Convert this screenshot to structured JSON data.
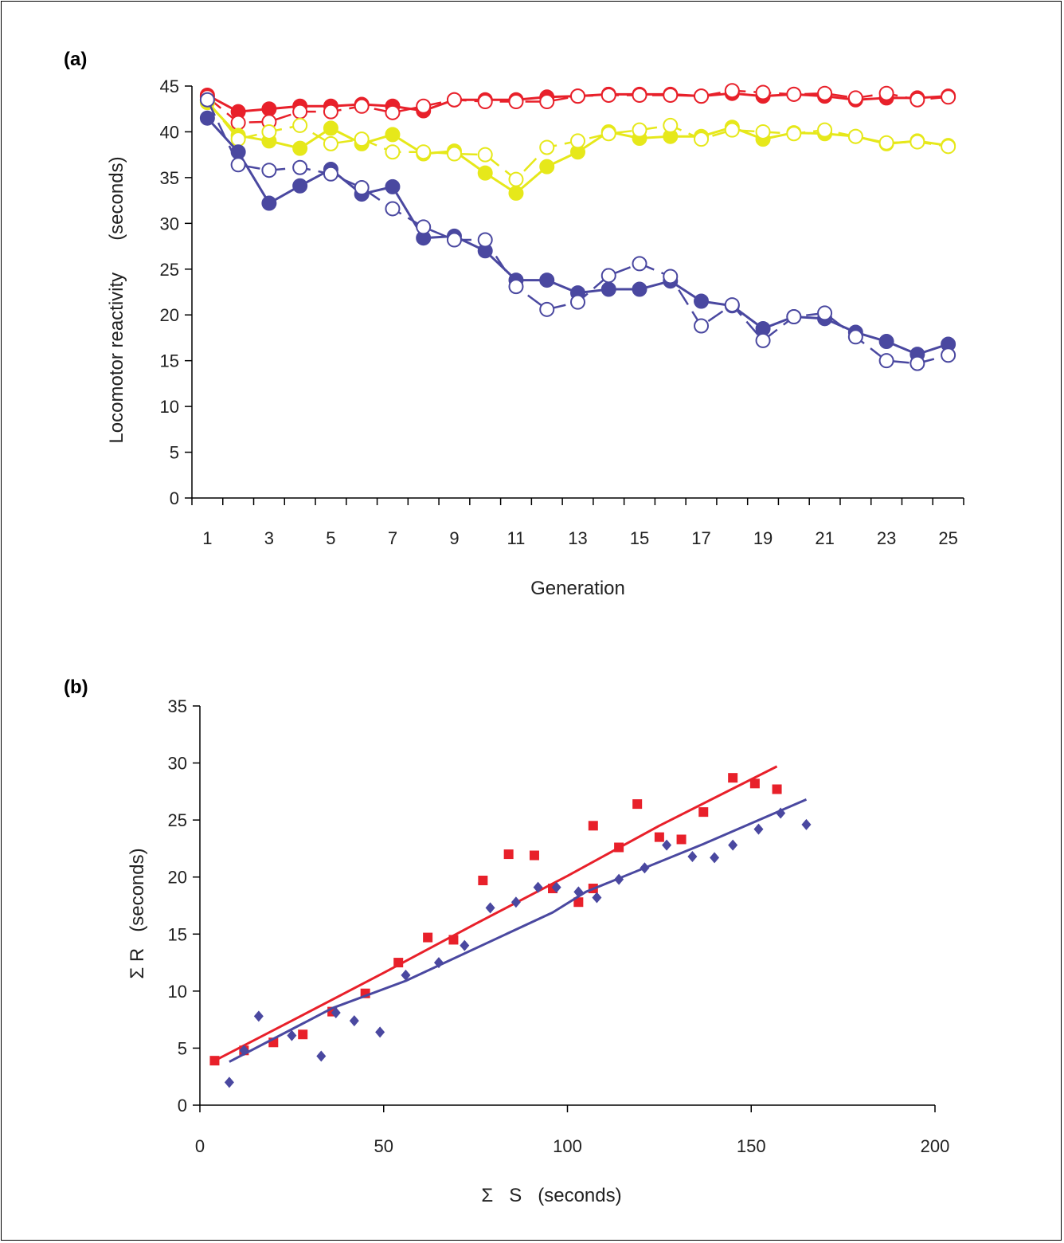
{
  "colors": {
    "red": "#e8202a",
    "yellow": "#e6e81a",
    "blue": "#4a48a0",
    "axis": "#000000",
    "text": "#222222"
  },
  "chart_data": [
    {
      "panel": "(a)",
      "type": "line",
      "xlabel": "Generation",
      "ylabel": "Locomotor reactivity      (seconds)",
      "xlim": [
        0.5,
        25.5
      ],
      "ylim": [
        0,
        45
      ],
      "xticks": [
        1,
        3,
        5,
        7,
        9,
        11,
        13,
        15,
        17,
        19,
        21,
        23,
        25
      ],
      "yticks": [
        0,
        5,
        10,
        15,
        20,
        25,
        30,
        35,
        40,
        45
      ],
      "grid": false,
      "x": [
        1,
        2,
        3,
        4,
        5,
        6,
        7,
        8,
        9,
        10,
        11,
        12,
        13,
        14,
        15,
        16,
        17,
        18,
        19,
        20,
        21,
        22,
        23,
        24,
        25
      ],
      "series": [
        {
          "color": "red",
          "marker": "filled-circle",
          "dash": false,
          "values": [
            44.0,
            42.2,
            42.5,
            42.8,
            42.8,
            43.0,
            42.8,
            42.3,
            43.5,
            43.5,
            43.5,
            43.8,
            43.9,
            44.1,
            44.1,
            44.1,
            43.9,
            44.2,
            43.9,
            44.1,
            43.9,
            43.5,
            43.7,
            43.7,
            43.9
          ]
        },
        {
          "color": "red",
          "marker": "open-circle",
          "dash": true,
          "values": [
            43.8,
            41.0,
            41.1,
            42.2,
            42.2,
            42.8,
            42.1,
            42.8,
            43.5,
            43.3,
            43.3,
            43.3,
            43.9,
            44.0,
            44.0,
            44.0,
            43.9,
            44.5,
            44.3,
            44.1,
            44.2,
            43.7,
            44.2,
            43.5,
            43.8
          ]
        },
        {
          "color": "yellow",
          "marker": "filled-circle",
          "dash": false,
          "values": [
            43.2,
            39.6,
            39.0,
            38.2,
            40.4,
            38.7,
            39.7,
            37.6,
            37.9,
            35.5,
            33.3,
            36.2,
            37.8,
            40.0,
            39.3,
            39.5,
            39.5,
            40.5,
            39.2,
            39.9,
            39.8,
            39.5,
            38.7,
            39.0,
            38.5
          ]
        },
        {
          "color": "yellow",
          "marker": "open-circle",
          "dash": true,
          "values": [
            43.4,
            39.2,
            40.0,
            40.7,
            38.7,
            39.2,
            37.8,
            37.8,
            37.6,
            37.5,
            34.8,
            38.3,
            39.0,
            39.8,
            40.2,
            40.7,
            39.2,
            40.2,
            40.0,
            39.8,
            40.2,
            39.5,
            38.8,
            38.9,
            38.4
          ]
        },
        {
          "color": "blue",
          "marker": "filled-circle",
          "dash": false,
          "values": [
            41.5,
            37.8,
            32.2,
            34.1,
            35.9,
            33.2,
            34.0,
            28.4,
            28.6,
            27.0,
            23.8,
            23.8,
            22.4,
            22.8,
            22.8,
            23.7,
            21.5,
            21.0,
            18.5,
            19.8,
            19.6,
            18.1,
            17.1,
            15.7,
            16.8
          ]
        },
        {
          "color": "blue",
          "marker": "open-circle",
          "dash": true,
          "values": [
            43.5,
            36.4,
            35.8,
            36.1,
            35.4,
            33.9,
            31.6,
            29.6,
            28.2,
            28.2,
            23.1,
            20.6,
            21.4,
            24.3,
            25.6,
            24.2,
            18.8,
            21.1,
            17.2,
            19.8,
            20.2,
            17.6,
            15.0,
            14.7,
            15.6
          ]
        }
      ]
    },
    {
      "panel": "(b)",
      "type": "scatter",
      "xlabel": "Σ   S   (seconds)",
      "ylabel": "Σ R   (seconds)",
      "xlim": [
        0,
        200
      ],
      "ylim": [
        0,
        35
      ],
      "xticks": [
        0,
        50,
        100,
        150,
        200
      ],
      "yticks": [
        0,
        5,
        10,
        15,
        20,
        25,
        30,
        35
      ],
      "grid": false,
      "series": [
        {
          "color": "red",
          "marker": "square",
          "points": [
            [
              4,
              3.9
            ],
            [
              12,
              4.8
            ],
            [
              20,
              5.5
            ],
            [
              28,
              6.2
            ],
            [
              36,
              8.2
            ],
            [
              45,
              9.8
            ],
            [
              54,
              12.5
            ],
            [
              62,
              14.7
            ],
            [
              69,
              14.5
            ],
            [
              77,
              19.7
            ],
            [
              84,
              22.0
            ],
            [
              91,
              21.9
            ],
            [
              96,
              19.0
            ],
            [
              103,
              17.8
            ],
            [
              107,
              19.0
            ],
            [
              107,
              24.5
            ],
            [
              114,
              22.6
            ],
            [
              119,
              26.4
            ],
            [
              125,
              23.5
            ],
            [
              131,
              23.3
            ],
            [
              137,
              25.7
            ],
            [
              145,
              28.7
            ],
            [
              151,
              28.2
            ],
            [
              157,
              27.7
            ]
          ],
          "fit": [
            [
              4,
              3.9
            ],
            [
              25,
              7.4
            ],
            [
              50,
              11.6
            ],
            [
              75,
              15.9
            ],
            [
              100,
              20.1
            ],
            [
              125,
              24.5
            ],
            [
              157,
              29.7
            ]
          ]
        },
        {
          "color": "blue",
          "marker": "diamond",
          "points": [
            [
              8,
              2.0
            ],
            [
              12,
              4.8
            ],
            [
              16,
              7.8
            ],
            [
              25,
              6.1
            ],
            [
              33,
              4.3
            ],
            [
              37,
              8.1
            ],
            [
              42,
              7.4
            ],
            [
              49,
              6.4
            ],
            [
              56,
              11.4
            ],
            [
              65,
              12.5
            ],
            [
              72,
              14.0
            ],
            [
              79,
              17.3
            ],
            [
              86,
              17.8
            ],
            [
              92,
              19.1
            ],
            [
              97,
              19.1
            ],
            [
              103,
              18.7
            ],
            [
              108,
              18.2
            ],
            [
              114,
              19.8
            ],
            [
              121,
              20.8
            ],
            [
              127,
              22.8
            ],
            [
              134,
              21.8
            ],
            [
              140,
              21.7
            ],
            [
              145,
              22.8
            ],
            [
              152,
              24.2
            ],
            [
              158,
              25.6
            ],
            [
              165,
              24.6
            ]
          ],
          "fit": [
            [
              8,
              3.8
            ],
            [
              36,
              8.5
            ],
            [
              56,
              10.9
            ],
            [
              96,
              16.9
            ],
            [
              105,
              18.7
            ],
            [
              137,
              22.9
            ],
            [
              165,
              26.8
            ]
          ]
        }
      ]
    }
  ]
}
